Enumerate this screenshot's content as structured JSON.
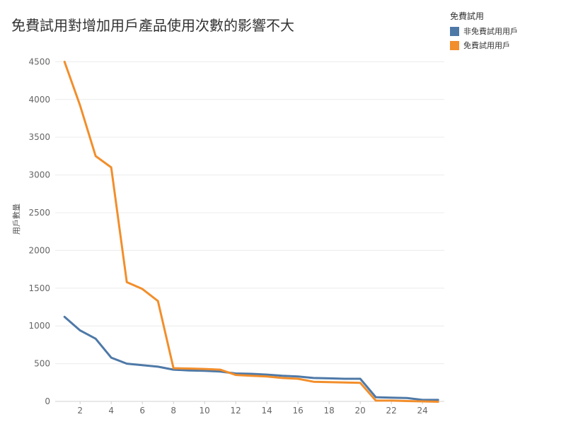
{
  "chart_data": {
    "type": "line",
    "title": "免費試用對增加用戶產品使用次數的影響不大",
    "xlabel": "",
    "ylabel": "用戶數量",
    "ylim": [
      0,
      4700
    ],
    "xlim": [
      0.4,
      25.4
    ],
    "grid": true,
    "legend_position": "top-right",
    "legend_title": "免費試用",
    "x_ticks": [
      2,
      4,
      6,
      8,
      10,
      12,
      14,
      16,
      18,
      20,
      22,
      24
    ],
    "y_ticks": [
      0,
      500,
      1000,
      1500,
      2000,
      2500,
      3000,
      3500,
      4000,
      4500
    ],
    "x": [
      1,
      2,
      3,
      4,
      5,
      6,
      7,
      8,
      9,
      10,
      11,
      12,
      13,
      14,
      15,
      16,
      17,
      18,
      19,
      20,
      21,
      22,
      23,
      24,
      25
    ],
    "series": [
      {
        "name": "非免費試用用戶",
        "color": "#4e79a7",
        "values": [
          1120,
          940,
          830,
          580,
          500,
          480,
          460,
          420,
          410,
          405,
          395,
          370,
          365,
          355,
          340,
          330,
          310,
          305,
          300,
          300,
          55,
          50,
          45,
          20,
          20
        ]
      },
      {
        "name": "免費試用用戶",
        "color": "#f28e2b",
        "values": [
          4500,
          3920,
          3250,
          3100,
          1580,
          1490,
          1330,
          440,
          435,
          430,
          420,
          350,
          340,
          330,
          310,
          300,
          260,
          255,
          250,
          245,
          10,
          10,
          5,
          0,
          -5
        ]
      }
    ]
  }
}
